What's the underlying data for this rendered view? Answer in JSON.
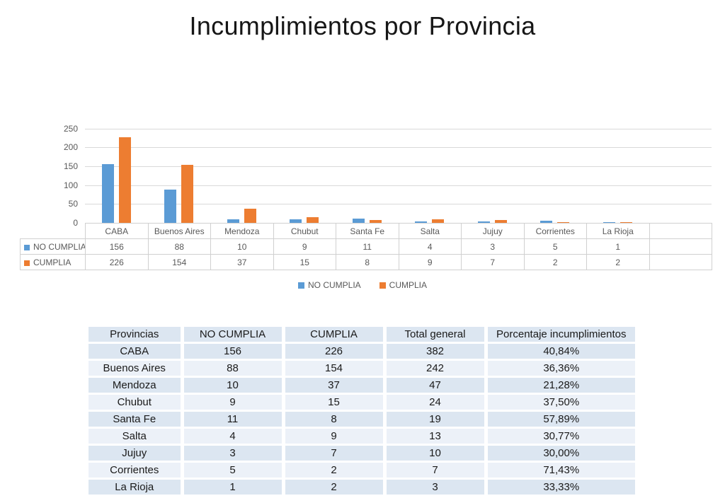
{
  "title": "Incumplimientos por Provincia",
  "colors": {
    "no_cumplia": "#5B9BD5",
    "cumplia": "#ED7D31"
  },
  "chart_data": {
    "type": "bar",
    "title": "Incumplimientos por Provincia",
    "categories": [
      "CABA",
      "Buenos Aires",
      "Mendoza",
      "Chubut",
      "Santa Fe",
      "Salta",
      "Jujuy",
      "Corrientes",
      "La Rioja",
      ""
    ],
    "series": [
      {
        "name": "NO CUMPLIA",
        "color": "#5B9BD5",
        "values": [
          156,
          88,
          10,
          9,
          11,
          4,
          3,
          5,
          1,
          null
        ]
      },
      {
        "name": "CUMPLIA",
        "color": "#ED7D31",
        "values": [
          226,
          154,
          37,
          15,
          8,
          9,
          7,
          2,
          2,
          null
        ]
      }
    ],
    "xlabel": "",
    "ylabel": "",
    "ylim": [
      0,
      250
    ],
    "ytick_step": 50,
    "yticks": [
      0,
      50,
      100,
      150,
      200,
      250
    ],
    "grid": true,
    "legend_position": "bottom",
    "legend": [
      "NO CUMPLIA",
      "CUMPLIA"
    ],
    "show_data_table": true
  },
  "summary_table": {
    "headers": [
      "Provincias",
      "NO CUMPLIA",
      "CUMPLIA",
      "Total general",
      "Porcentaje incumplimientos"
    ],
    "rows": [
      [
        "CABA",
        "156",
        "226",
        "382",
        "40,84%"
      ],
      [
        "Buenos Aires",
        "88",
        "154",
        "242",
        "36,36%"
      ],
      [
        "Mendoza",
        "10",
        "37",
        "47",
        "21,28%"
      ],
      [
        "Chubut",
        "9",
        "15",
        "24",
        "37,50%"
      ],
      [
        "Santa Fe",
        "11",
        "8",
        "19",
        "57,89%"
      ],
      [
        "Salta",
        "4",
        "9",
        "13",
        "30,77%"
      ],
      [
        "Jujuy",
        "3",
        "7",
        "10",
        "30,00%"
      ],
      [
        "Corrientes",
        "5",
        "2",
        "7",
        "71,43%"
      ],
      [
        "La Rioja",
        "1",
        "2",
        "3",
        "33,33%"
      ]
    ]
  }
}
